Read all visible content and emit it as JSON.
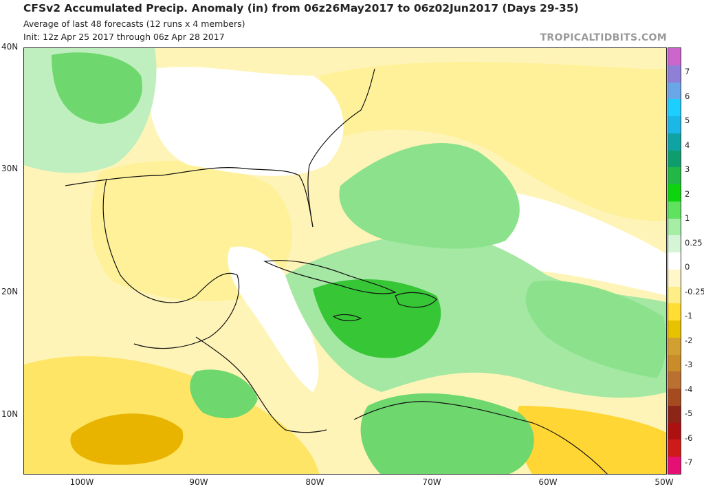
{
  "header": {
    "title": "CFSv2 Accumulated Precip. Anomaly (in) from 06z26May2017 to 06z02Jun2017 (Days 29-35)",
    "subtitle1": "Average of last 48 forecasts (12 runs x 4 members)",
    "subtitle2": "Init: 12z Apr 25 2017 through 06z Apr 28 2017",
    "brand": "TROPICALTIDBITS.COM"
  },
  "map": {
    "lat_labels": [
      "40N",
      "30N",
      "20N",
      "10N"
    ],
    "lon_labels": [
      "100W",
      "90W",
      "80W",
      "70W",
      "60W",
      "50W"
    ]
  },
  "colorbar": {
    "labels": [
      "7",
      "6",
      "5",
      "4",
      "3",
      "2",
      "1",
      "0.25",
      "0",
      "-0.25",
      "-1",
      "-2",
      "-3",
      "-4",
      "-5",
      "-6",
      "-7"
    ],
    "colors": [
      "#cc66cc",
      "#8f7fd6",
      "#6aa7e8",
      "#1ccfff",
      "#1bb7e6",
      "#0fa3a3",
      "#0e9e6e",
      "#22b845",
      "#0ed40e",
      "#5fe35f",
      "#a6eda6",
      "#d6f5d6",
      "#ffffff",
      "#fff6c9",
      "#ffee88",
      "#ffdd33",
      "#e6c200",
      "#d2a030",
      "#c98c28",
      "#b97030",
      "#a64a20",
      "#8c2418",
      "#ad1010",
      "#cf1a1a",
      "#e60f73"
    ]
  }
}
